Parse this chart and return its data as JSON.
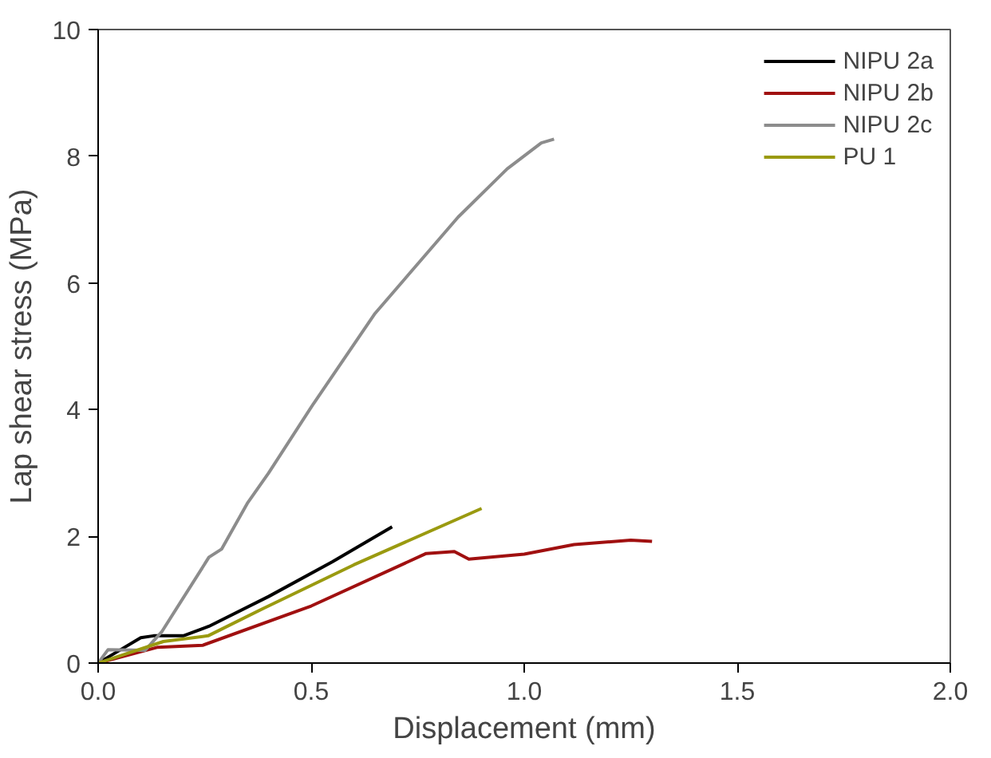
{
  "chart_data": {
    "type": "line",
    "xlabel": "Displacement (mm)",
    "ylabel": "Lap shear stress (MPa)",
    "xlim": [
      0,
      2
    ],
    "ylim": [
      0,
      10
    ],
    "xticks": [
      {
        "value": 0,
        "label": "0.0"
      },
      {
        "value": 0.5,
        "label": "0.5"
      },
      {
        "value": 1,
        "label": "1.0"
      },
      {
        "value": 1.5,
        "label": "1.5"
      },
      {
        "value": 2,
        "label": "2.0"
      }
    ],
    "yticks": [
      0,
      2,
      4,
      6,
      8,
      10
    ],
    "grid": false,
    "legend": "top right",
    "line_style": "solid",
    "marker": "none",
    "series": [
      {
        "name": "NIPU 2a",
        "color": "#000000",
        "x": [
          0,
          0.05,
          0.1,
          0.13,
          0.2,
          0.26,
          0.4,
          0.55,
          0.69
        ],
        "values": [
          0,
          0.2,
          0.4,
          0.43,
          0.43,
          0.58,
          1.05,
          1.6,
          2.15
        ]
      },
      {
        "name": "NIPU 2b",
        "color": "#a01010",
        "x": [
          0,
          0.14,
          0.245,
          0.5,
          0.77,
          0.836,
          0.87,
          1.0,
          1.117,
          1.25,
          1.3
        ],
        "values": [
          0,
          0.25,
          0.28,
          0.9,
          1.73,
          1.76,
          1.64,
          1.72,
          1.87,
          1.94,
          1.92
        ]
      },
      {
        "name": "NIPU 2c",
        "color": "#8c8c8c",
        "x": [
          0,
          0.023,
          0.11,
          0.15,
          0.26,
          0.29,
          0.35,
          0.4,
          0.505,
          0.65,
          0.845,
          0.96,
          1.04,
          1.07
        ],
        "values": [
          0,
          0.21,
          0.2,
          0.5,
          1.67,
          1.8,
          2.52,
          3.0,
          4.09,
          5.52,
          7.04,
          7.8,
          8.21,
          8.27
        ]
      },
      {
        "name": "PU 1",
        "color": "#9a9a10",
        "x": [
          0,
          0.153,
          0.258,
          0.387,
          0.6,
          0.9
        ],
        "values": [
          0,
          0.34,
          0.43,
          0.86,
          1.55,
          2.44
        ]
      }
    ]
  }
}
